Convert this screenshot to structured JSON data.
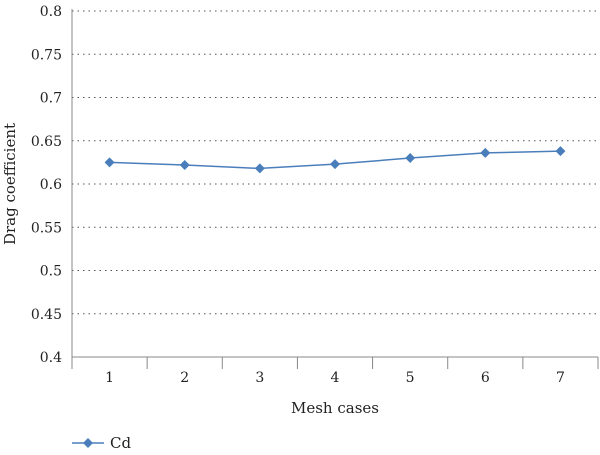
{
  "chart_data": {
    "type": "line",
    "title": "",
    "xlabel": "Mesh cases",
    "ylabel": "Drag coefficient",
    "categories": [
      "1",
      "2",
      "3",
      "4",
      "5",
      "6",
      "7"
    ],
    "ylim": [
      0.4,
      0.8
    ],
    "yticks": [
      "0.4",
      "0.45",
      "0.5",
      "0.55",
      "0.6",
      "0.65",
      "0.7",
      "0.75",
      "0.8"
    ],
    "ytick_values": [
      0.4,
      0.45,
      0.5,
      0.55,
      0.6,
      0.65,
      0.7,
      0.75,
      0.8
    ],
    "grid": "horizontal-dotted",
    "legend_position": "bottom-left",
    "series": [
      {
        "name": "Cd",
        "color": "#4a7ebb",
        "marker": "diamond",
        "values": [
          0.625,
          0.622,
          0.618,
          0.623,
          0.63,
          0.636,
          0.638
        ]
      }
    ]
  }
}
